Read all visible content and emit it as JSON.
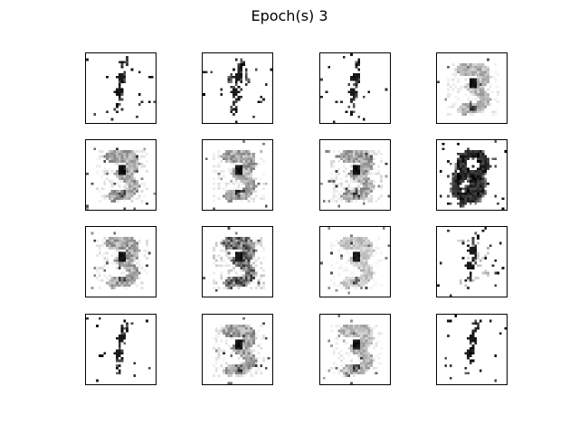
{
  "figure": {
    "title": "Epoch(s) 3",
    "grid_rows": 4,
    "grid_cols": 4,
    "image_resolution": 28,
    "colormap": "gray_r"
  },
  "panels": [
    {
      "row": 0,
      "col": 0,
      "style": "sparse"
    },
    {
      "row": 0,
      "col": 1,
      "style": "sparse-loop"
    },
    {
      "row": 0,
      "col": 2,
      "style": "sparse"
    },
    {
      "row": 0,
      "col": 3,
      "style": "faint-three"
    },
    {
      "row": 1,
      "col": 0,
      "style": "three"
    },
    {
      "row": 1,
      "col": 1,
      "style": "three"
    },
    {
      "row": 1,
      "col": 2,
      "style": "three"
    },
    {
      "row": 1,
      "col": 3,
      "style": "bold-eight"
    },
    {
      "row": 2,
      "col": 0,
      "style": "three"
    },
    {
      "row": 2,
      "col": 1,
      "style": "dense-three"
    },
    {
      "row": 2,
      "col": 2,
      "style": "light-three"
    },
    {
      "row": 2,
      "col": 3,
      "style": "sparse-faint"
    },
    {
      "row": 3,
      "col": 0,
      "style": "sparse"
    },
    {
      "row": 3,
      "col": 1,
      "style": "three"
    },
    {
      "row": 3,
      "col": 2,
      "style": "faint-three"
    },
    {
      "row": 3,
      "col": 3,
      "style": "sparse"
    }
  ]
}
